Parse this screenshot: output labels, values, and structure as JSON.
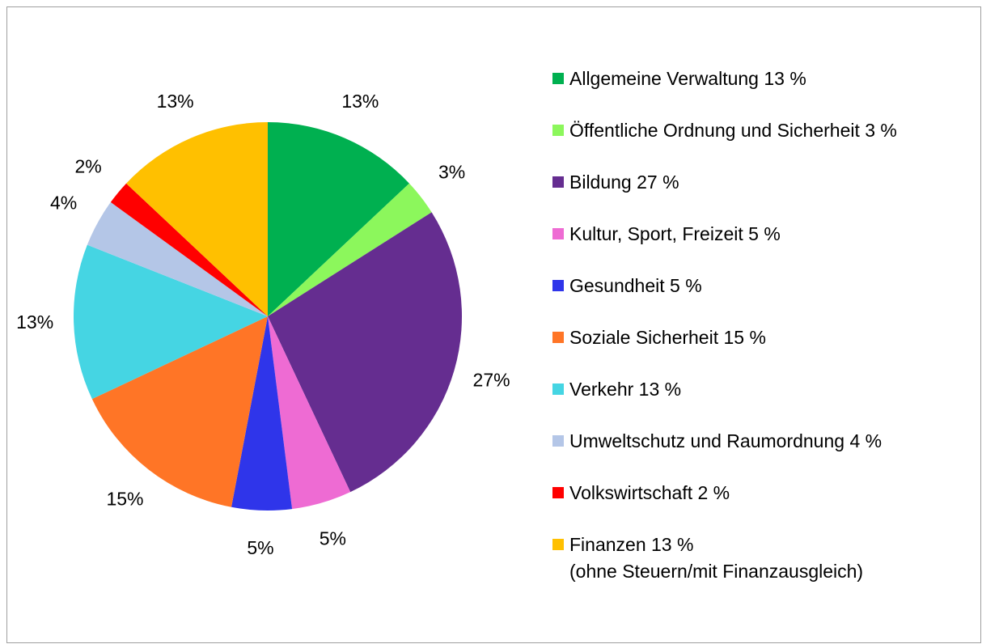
{
  "chart_data": {
    "type": "pie",
    "categories": [
      "Allgemeine Verwaltung 13 %",
      "Öffentliche Ordnung und Sicherheit 3 %",
      "Bildung 27 %",
      "Kultur, Sport, Freizeit 5 %",
      "Gesundheit 5 %",
      "Soziale Sicherheit 15 %",
      "Verkehr 13 %",
      "Umweltschutz und Raumordnung 4 %",
      "Volkswirtschaft 2 %",
      "Finanzen 13 %\n(ohne Steuern/mit Finanzausgleich)"
    ],
    "values": [
      13,
      3,
      27,
      5,
      5,
      15,
      13,
      4,
      2,
      13
    ],
    "value_labels": [
      "13%",
      "3%",
      "27%",
      "5%",
      "5%",
      "15%",
      "13%",
      "4%",
      "2%",
      "13%"
    ],
    "colors": [
      "#00b050",
      "#8cf75c",
      "#652d90",
      "#ee6bd3",
      "#2f35ea",
      "#ff7526",
      "#45d5e3",
      "#b4c6e7",
      "#ff0000",
      "#ffc000"
    ],
    "legend": "right"
  }
}
